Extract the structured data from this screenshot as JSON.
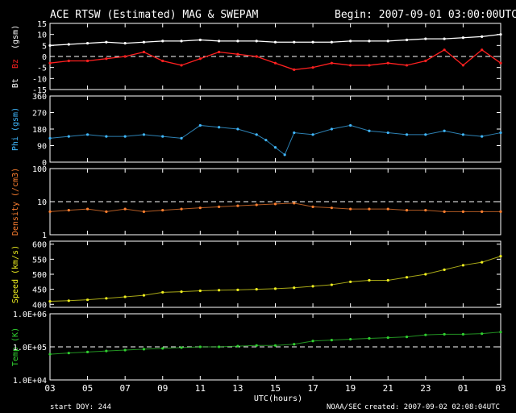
{
  "header": {
    "title": "ACE RTSW (Estimated) MAG & SWEPAM",
    "begin": "Begin: 2007-09-01 03:00:00UTC"
  },
  "footer": {
    "start_doy": "start DOY: 244",
    "org": "NOAA/SEC",
    "created": "created: 2007-09-02 02:08:04UTC"
  },
  "colors": {
    "background": "#000000",
    "axes": "#ffffff",
    "bt": "#ffffff",
    "bz": "#ff2020",
    "phi": "#40b8ff",
    "density": "#ff8030",
    "speed": "#f0f020",
    "temp": "#30d030"
  },
  "chart_data": [
    {
      "type": "line",
      "panel": "bt_bz",
      "xlabel": "UTC(hours)",
      "x_ticks": [
        "03",
        "05",
        "07",
        "09",
        "11",
        "13",
        "15",
        "17",
        "19",
        "21",
        "23",
        "01",
        "03"
      ],
      "xlim": [
        0,
        24
      ],
      "ylabel_parts": [
        "Bt",
        "Bz",
        "(gsm)"
      ],
      "ylim": [
        -15,
        15
      ],
      "y_ticks": [
        "15",
        "10",
        "5",
        "0",
        "-5",
        "-10",
        "-15"
      ],
      "y_tick_values": [
        15,
        10,
        5,
        0,
        -5,
        -10,
        -15
      ],
      "reference_line": 0,
      "series": [
        {
          "name": "Bt",
          "x": [
            0,
            1,
            2,
            3,
            4,
            5,
            6,
            7,
            8,
            9,
            10,
            11,
            12,
            13,
            14,
            15,
            16,
            17,
            18,
            19,
            20,
            21,
            22,
            23,
            24
          ],
          "y": [
            5,
            5.5,
            6,
            6.5,
            6,
            6.5,
            7,
            7,
            7.5,
            7,
            7,
            7,
            6.5,
            6.5,
            6.5,
            6.5,
            7,
            7,
            7,
            7.5,
            8,
            8,
            8.5,
            9,
            10
          ]
        },
        {
          "name": "Bz",
          "x": [
            0,
            1,
            2,
            3,
            4,
            5,
            6,
            7,
            8,
            9,
            10,
            11,
            12,
            13,
            14,
            15,
            16,
            17,
            18,
            19,
            20,
            21,
            22,
            23,
            24
          ],
          "y": [
            -3,
            -2,
            -2,
            -1,
            0,
            2,
            -2,
            -4,
            -1,
            2,
            1,
            0,
            -3,
            -6,
            -5,
            -3,
            -4,
            -4,
            -3,
            -4,
            -2,
            3,
            -4,
            3,
            -3
          ]
        }
      ]
    },
    {
      "type": "scatter",
      "panel": "phi",
      "ylabel": "Phi (gsm)",
      "ylim": [
        0,
        360
      ],
      "y_ticks": [
        "360",
        "270",
        "180",
        "90",
        "0"
      ],
      "y_tick_values": [
        360,
        270,
        180,
        90,
        0
      ],
      "series": [
        {
          "name": "Phi",
          "x": [
            0,
            1,
            2,
            3,
            4,
            5,
            6,
            7,
            8,
            9,
            10,
            11,
            11.5,
            12,
            12.5,
            13,
            14,
            15,
            16,
            17,
            18,
            19,
            20,
            21,
            22,
            23,
            24
          ],
          "y": [
            130,
            140,
            150,
            140,
            140,
            150,
            140,
            130,
            200,
            190,
            180,
            150,
            120,
            80,
            40,
            160,
            150,
            180,
            200,
            170,
            160,
            150,
            150,
            170,
            150,
            140,
            160
          ]
        }
      ]
    },
    {
      "type": "scatter",
      "panel": "density",
      "ylabel": "Density (/cm3)",
      "scale": "log",
      "ylim": [
        1,
        100
      ],
      "y_ticks": [
        "100",
        "10",
        "1"
      ],
      "y_tick_values": [
        100,
        10,
        1
      ],
      "reference_line": 10,
      "series": [
        {
          "name": "Density",
          "x": [
            0,
            1,
            2,
            3,
            4,
            5,
            6,
            7,
            8,
            9,
            10,
            11,
            12,
            13,
            14,
            15,
            16,
            17,
            18,
            19,
            20,
            21,
            22,
            23,
            24
          ],
          "y": [
            5,
            5.5,
            6,
            5,
            6,
            5,
            5.5,
            6,
            6.5,
            7,
            7.5,
            8,
            8.5,
            9,
            7,
            6.5,
            6,
            6,
            6,
            5.5,
            5.5,
            5,
            5,
            5,
            5
          ]
        }
      ]
    },
    {
      "type": "scatter",
      "panel": "speed",
      "ylabel": "Speed (km/s)",
      "ylim": [
        390,
        610
      ],
      "y_ticks": [
        "600",
        "550",
        "500",
        "450",
        "400"
      ],
      "y_tick_values": [
        600,
        550,
        500,
        450,
        400
      ],
      "series": [
        {
          "name": "Speed",
          "x": [
            0,
            1,
            2,
            3,
            4,
            5,
            6,
            7,
            8,
            9,
            10,
            11,
            12,
            13,
            14,
            15,
            16,
            17,
            18,
            19,
            20,
            21,
            22,
            23,
            24
          ],
          "y": [
            410,
            412,
            415,
            420,
            425,
            430,
            440,
            442,
            445,
            447,
            448,
            450,
            452,
            455,
            460,
            465,
            475,
            480,
            480,
            490,
            500,
            515,
            530,
            540,
            560
          ]
        }
      ]
    },
    {
      "type": "scatter",
      "panel": "temp",
      "ylabel": "Temp (K)",
      "scale": "log",
      "ylim": [
        10000,
        1000000
      ],
      "y_ticks": [
        "1.0E+06",
        "1.0E+05",
        "1.0E+04"
      ],
      "y_tick_values": [
        1000000,
        100000,
        10000
      ],
      "reference_line": 100000,
      "series": [
        {
          "name": "Temp",
          "x": [
            0,
            1,
            2,
            3,
            4,
            5,
            6,
            7,
            8,
            9,
            10,
            11,
            12,
            13,
            14,
            15,
            16,
            17,
            18,
            19,
            20,
            21,
            22,
            23,
            24
          ],
          "y": [
            60000,
            65000,
            70000,
            75000,
            80000,
            85000,
            90000,
            95000,
            100000,
            100000,
            105000,
            110000,
            110000,
            120000,
            150000,
            160000,
            170000,
            180000,
            190000,
            200000,
            230000,
            240000,
            240000,
            250000,
            280000
          ]
        }
      ]
    }
  ]
}
